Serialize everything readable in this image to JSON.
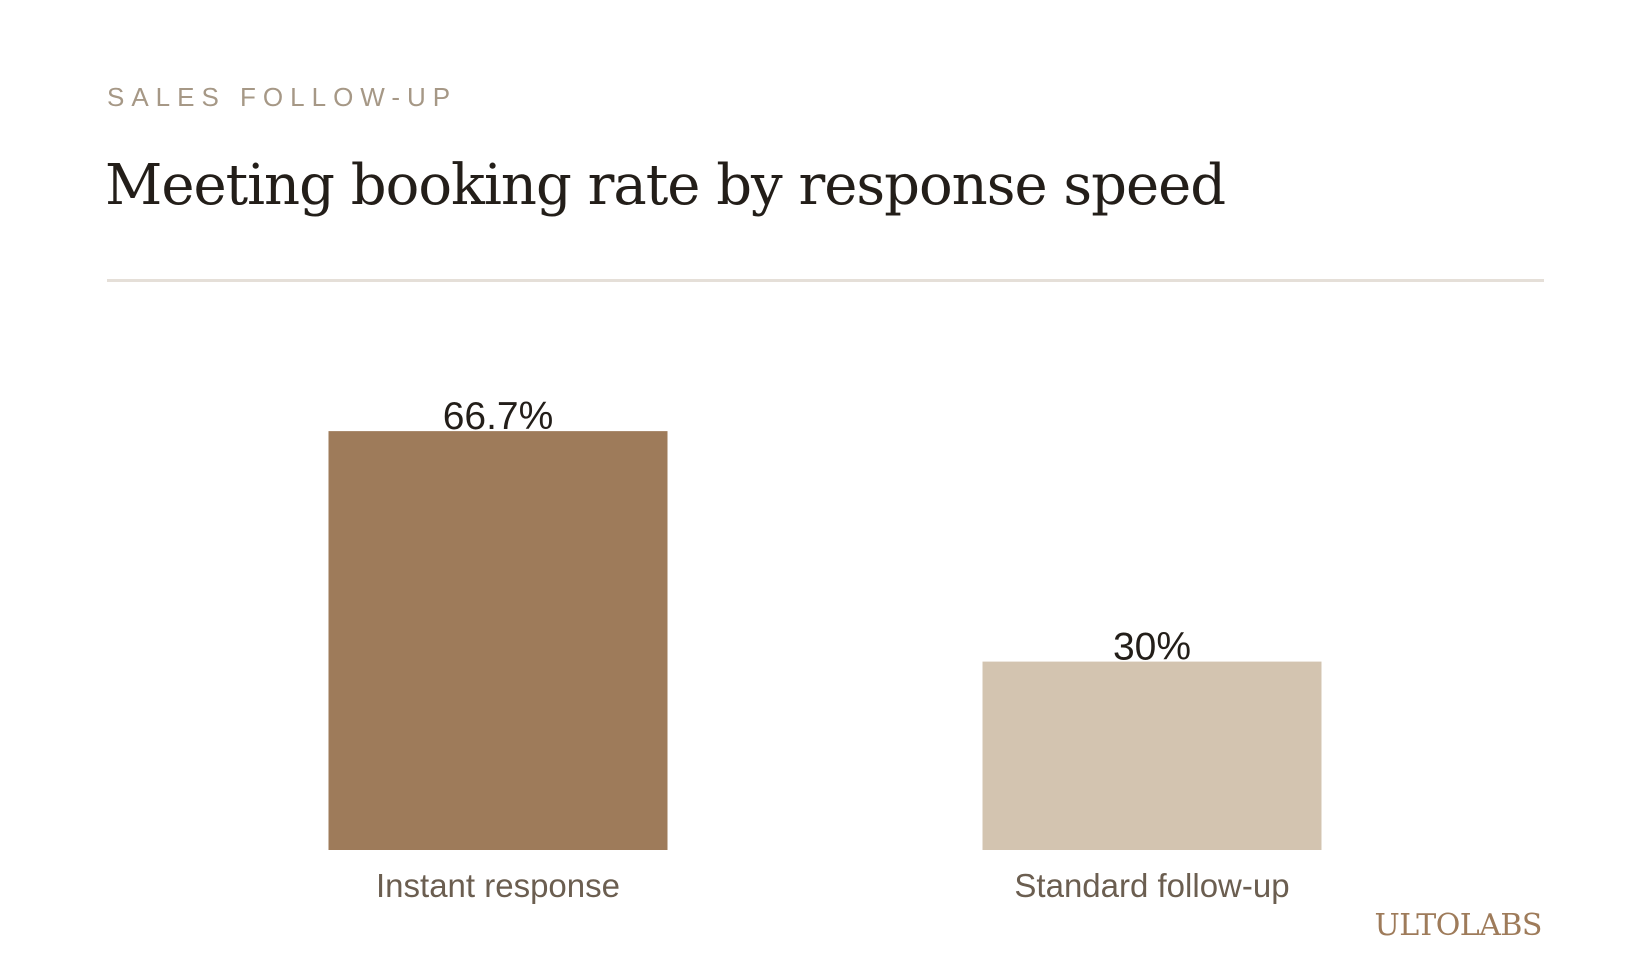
{
  "header": {
    "eyebrow": "SALES FOLLOW-UP",
    "title": "Meeting booking rate by response speed"
  },
  "brand": {
    "name": "ULTOLABS"
  },
  "chart_data": {
    "type": "bar",
    "title": "Meeting booking rate by response speed",
    "categories": [
      "Instant response",
      "Standard follow-up"
    ],
    "values": [
      66.7,
      30
    ],
    "value_labels": [
      "66.7%",
      "30%"
    ],
    "colors": [
      "#9e7b5a",
      "#d3c4b0"
    ],
    "ylim": [
      0,
      70
    ],
    "xlabel": "",
    "ylabel": "",
    "grid": false,
    "legend": "none"
  }
}
